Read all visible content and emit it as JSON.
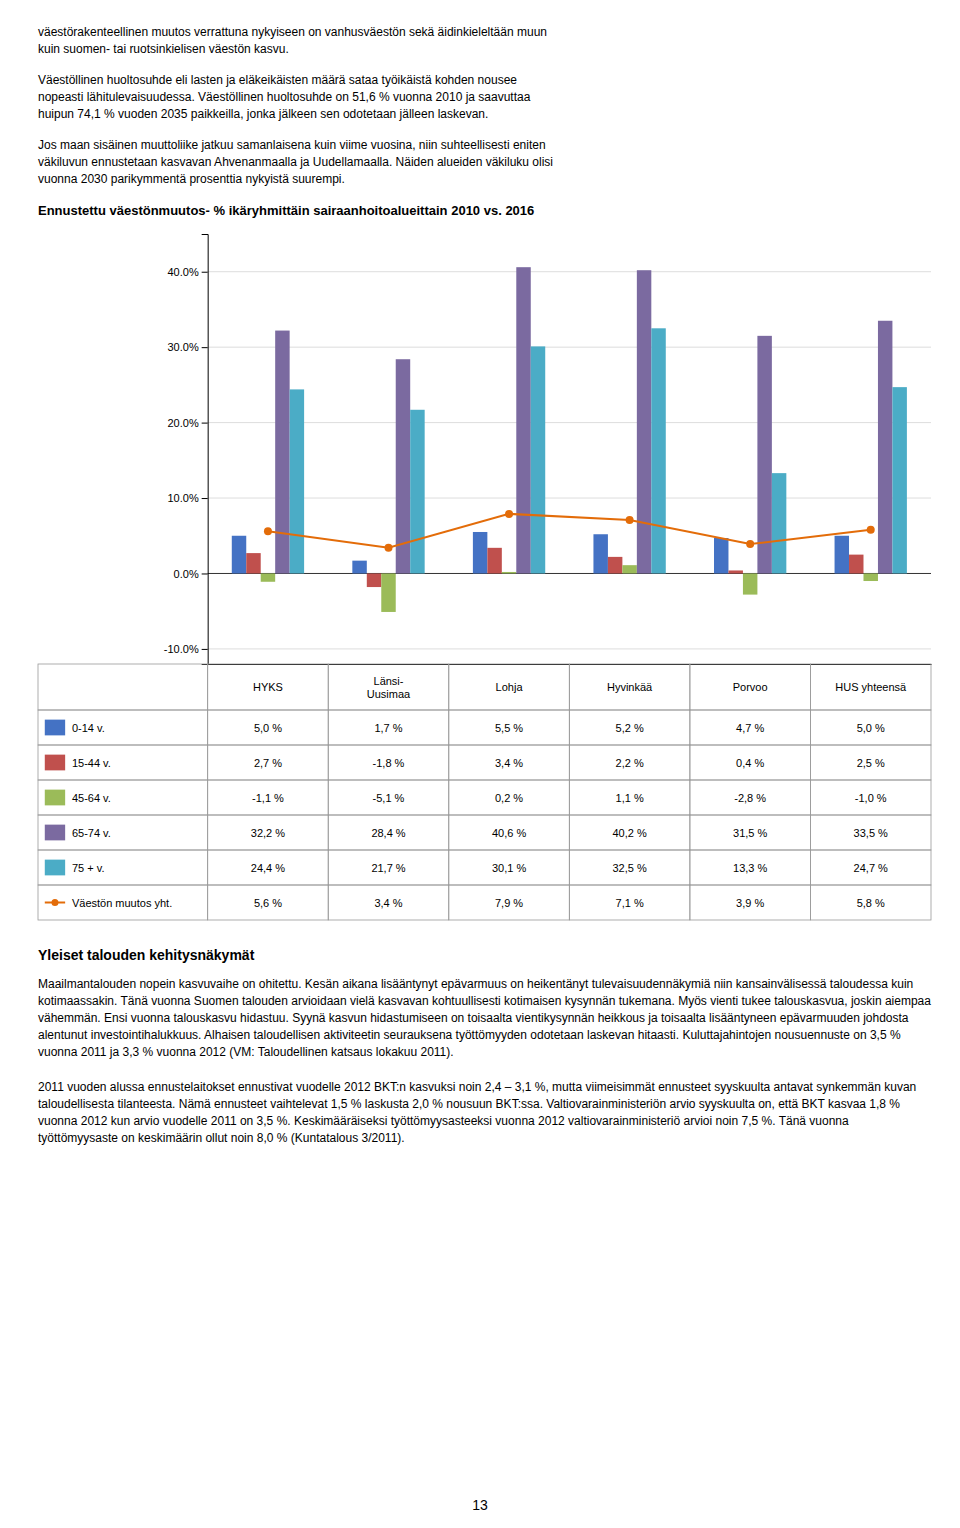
{
  "header_texts": [
    "väestörakenteellinen muutos verrattuna nykyiseen on vanhusväestön sekä äidinkieleltään muun\nkuin suomen- tai ruotsinkielisen väestön kasvu.",
    "Väestöllinen huoltosuhde eli lasten ja eläkeikäisten määrä sataa työikäistä kohden nousee\nnopeasti lähitulevaisuudessa. Väestöllinen huoltosuhde on 51,6 % vuonna 2010 ja saavuttaa\nhuipun 74,1 % vuoden 2035 paikkeilla, jonka jälkeen sen odotetaan jälleen laskevan.",
    "Jos maan sisäinen muuttoliike jatkuu samanlaisena kuin viime vuosina, niin suhteellisesti eniten\nväkiluvun ennustetaan kasvavan Ahvenanmaalla ja Uudellamaalla. Näiden alueiden väkiluku olisi\nvuonna 2030 parikymmentä prosenttia nykyistä suurempi."
  ],
  "chart_data": {
    "type": "bar",
    "title": "Ennustettu väestönmuutos- % ikäryhmittäin sairaanhoitoalueittain 2010 vs. 2016",
    "categories": [
      "HYKS",
      "Länsi-\nUusimaa",
      "Lohja",
      "Hyvinkää",
      "Porvoo",
      "HUS yhteensä"
    ],
    "series": [
      {
        "name": "0-14 v.",
        "type": "bar",
        "color": "#4472C4",
        "values": [
          5.0,
          1.7,
          5.5,
          5.2,
          4.7,
          5.0
        ],
        "value_labels": [
          "5,0 %",
          "1,7 %",
          "5,5 %",
          "5,2 %",
          "4,7 %",
          "5,0 %"
        ]
      },
      {
        "name": "15-44 v.",
        "type": "bar",
        "color": "#C0504D",
        "values": [
          2.7,
          -1.8,
          3.4,
          2.2,
          0.4,
          2.5
        ],
        "value_labels": [
          "2,7 %",
          "-1,8 %",
          "3,4 %",
          "2,2 %",
          "0,4 %",
          "2,5 %"
        ]
      },
      {
        "name": "45-64 v.",
        "type": "bar",
        "color": "#9BBB59",
        "values": [
          -1.1,
          -5.1,
          0.2,
          1.1,
          -2.8,
          -1.0
        ],
        "value_labels": [
          "-1,1 %",
          "-5,1 %",
          "0,2 %",
          "1,1 %",
          "-2,8 %",
          "-1,0 %"
        ]
      },
      {
        "name": "65-74 v.",
        "type": "bar",
        "color": "#7B6AA0",
        "values": [
          32.2,
          28.4,
          40.6,
          40.2,
          31.5,
          33.5
        ],
        "value_labels": [
          "32,2 %",
          "28,4 %",
          "40,6 %",
          "40,2 %",
          "31,5 %",
          "33,5 %"
        ]
      },
      {
        "name": "75 + v.",
        "type": "bar",
        "color": "#4BACC6",
        "values": [
          24.4,
          21.7,
          30.1,
          32.5,
          13.3,
          24.7
        ],
        "value_labels": [
          "24,4 %",
          "21,7 %",
          "30,1 %",
          "32,5 %",
          "13,3 %",
          "24,7 %"
        ]
      },
      {
        "name": "Väestön muutos yht.",
        "type": "line",
        "marker": "circle",
        "color": "#E36C09",
        "values": [
          5.6,
          3.4,
          7.9,
          7.1,
          3.9,
          5.8
        ],
        "value_labels": [
          "5,6 %",
          "3,4 %",
          "7,9 %",
          "7,1 %",
          "3,9 %",
          "5,8 %"
        ]
      }
    ],
    "ylim": [
      -12,
      45
    ],
    "yticks": [
      {
        "value": -10.0,
        "label": "-10.0%"
      },
      {
        "value": 0.0,
        "label": "0.0%"
      },
      {
        "value": 10.0,
        "label": "10.0%"
      },
      {
        "value": 20.0,
        "label": "20.0%"
      },
      {
        "value": 30.0,
        "label": "30.0%"
      },
      {
        "value": 40.0,
        "label": "40.0%"
      }
    ],
    "grid": true,
    "tick_labels": "y"
  },
  "footer_title": "Yleiset talouden kehitysnäkymät",
  "footer_texts": [
    "Maailmantalouden nopein kasvuvaihe on ohitettu. Kesän aikana lisääntynyt epävarmuus on heikentänyt tulevaisuudennäkymiä niin kansainvälisessä taloudessa kuin kotimaassakin. Tänä vuonna Suomen talouden arvioidaan vielä kasvavan kohtuullisesti kotimaisen kysynnän tukemana. Myös vienti tukee talouskasvua, joskin aiempaa vähemmän. Ensi vuonna talouskasvu hidastuu. Syynä kasvun hidastumiseen on toisaalta vientikysynnän heikkous ja toisaalta lisääntyneen epävarmuuden johdosta alentunut investointihalukkuus. Alhaisen taloudellisen aktiviteetin seurauksena työttömyyden odotetaan laskevan hitaasti. Kuluttajahintojen nousuennuste on 3,5 % vuonna 2011 ja 3,3 % vuonna 2012 (VM: Taloudellinen katsaus lokakuu 2011).",
    "2011 vuoden alussa ennustelaitokset ennustivat vuodelle 2012 BKT:n kasvuksi noin 2,4 – 3,1 %, mutta viimeisimmät ennusteet syyskuulta antavat synkemmän kuvan taloudellisesta tilanteesta. Nämä ennusteet vaihtelevat 1,5 % laskusta 2,0 % nousuun BKT:ssa. Valtiovarainministeriön arvio syyskuulta on, että BKT kasvaa 1,8 % vuonna 2012 kun arvio vuodelle 2011 on 3,5 %. Keskimääräiseksi työttömyysasteeksi vuonna 2012 valtiovarainministeriö arvioi noin 7,5 %. Tänä vuonna työttömyysaste on keskimäärin ollut noin 8,0 % (Kuntatalous 3/2011)."
  ],
  "page_number": "13"
}
